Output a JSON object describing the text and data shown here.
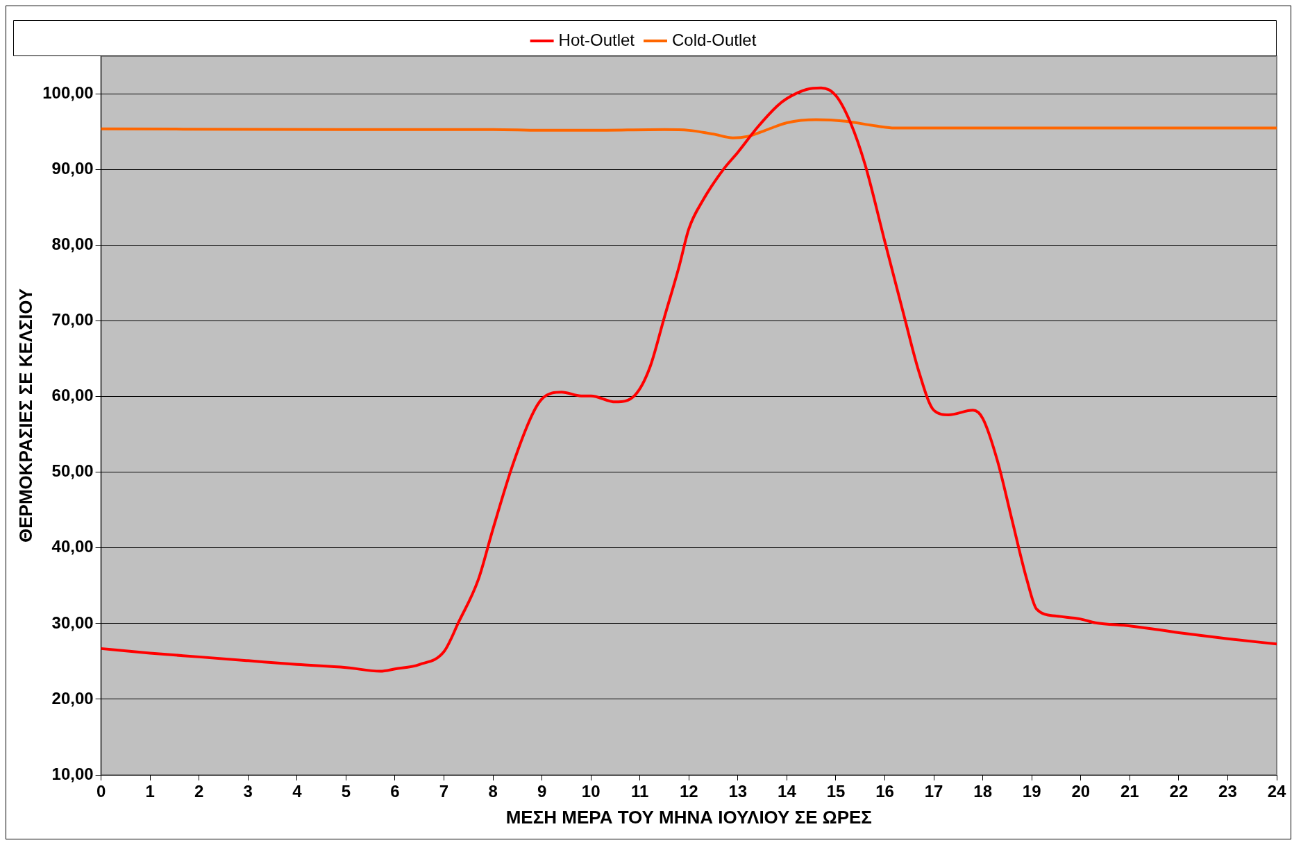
{
  "chart_data": {
    "type": "line",
    "xlabel": "ΜΕΣΗ ΜΕΡΑ ΤΟΥ ΜΗΝΑ ΙΟΥΛΙΟΥ ΣΕ ΩΡΕΣ",
    "ylabel": "ΘΕΡΜΟΚΡΑΣΙΕΣ ΣΕ ΚΕΛΣΙΟΥ",
    "xlim": [
      0,
      24
    ],
    "xticks": [
      0,
      1,
      2,
      3,
      4,
      5,
      6,
      7,
      8,
      9,
      10,
      11,
      12,
      13,
      14,
      15,
      16,
      17,
      18,
      19,
      20,
      21,
      22,
      23,
      24
    ],
    "ylim": [
      10,
      105
    ],
    "yticks": [
      {
        "value": 10,
        "label": "10,00"
      },
      {
        "value": 20,
        "label": "20,00"
      },
      {
        "value": 30,
        "label": "30,00"
      },
      {
        "value": 40,
        "label": "40,00"
      },
      {
        "value": 50,
        "label": "50,00"
      },
      {
        "value": 60,
        "label": "60,00"
      },
      {
        "value": 70,
        "label": "70,00"
      },
      {
        "value": 80,
        "label": "80,00"
      },
      {
        "value": 90,
        "label": "90,00"
      },
      {
        "value": 100,
        "label": "100,00"
      }
    ],
    "grid": "y",
    "legend": "top",
    "marker": "none",
    "line_style": "solid",
    "series": [
      {
        "name": "Hot-Outlet",
        "color": "#ff0000",
        "x": [
          0,
          1,
          2,
          3,
          4,
          5,
          5.7,
          6,
          6.5,
          7,
          7.3,
          7.7,
          8,
          8.4,
          8.8,
          9,
          9.4,
          9.8,
          10,
          10.5,
          10.9,
          11.2,
          11.5,
          11.8,
          12,
          12.3,
          12.7,
          13,
          13.4,
          13.8,
          14,
          14.4,
          14.7,
          15,
          15.3,
          15.6,
          16,
          16.4,
          16.7,
          17,
          17.3,
          17.8,
          18,
          18.3,
          18.6,
          18.9,
          19.1,
          19.5,
          20,
          20.3,
          21,
          22,
          23,
          24
        ],
        "values": [
          26.7,
          26.1,
          25.6,
          25.1,
          24.6,
          24.2,
          23.7,
          24.0,
          24.6,
          26.3,
          30.2,
          35.8,
          42.5,
          50.9,
          57.6,
          59.7,
          60.6,
          60.1,
          60.1,
          59.3,
          60.2,
          63.8,
          70.5,
          77.2,
          82.2,
          86.1,
          90.0,
          92.3,
          95.6,
          98.4,
          99.4,
          100.6,
          100.8,
          99.8,
          96.2,
          90.6,
          80.5,
          70.5,
          63.2,
          58.2,
          57.6,
          58.2,
          57.1,
          51.5,
          43.6,
          35.8,
          31.9,
          31.0,
          30.6,
          30.1,
          29.7,
          28.8,
          28.0,
          27.3
        ]
      },
      {
        "name": "Cold-Outlet",
        "color": "#ff6600",
        "x": [
          0,
          5,
          8,
          9,
          10,
          11.5,
          12,
          12.5,
          12.9,
          13.2,
          13.6,
          14,
          14.6,
          15.2,
          15.7,
          16.2,
          17,
          24
        ],
        "values": [
          95.4,
          95.3,
          95.3,
          95.2,
          95.2,
          95.3,
          95.2,
          94.7,
          94.2,
          94.4,
          95.3,
          96.2,
          96.6,
          96.4,
          95.9,
          95.5,
          95.5,
          95.5
        ]
      }
    ]
  }
}
